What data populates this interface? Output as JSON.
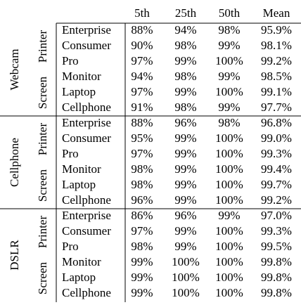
{
  "table": {
    "header": [
      "5th",
      "25th",
      "50th",
      "Mean"
    ],
    "groups": [
      {
        "label": "Webcam",
        "subgroups": [
          {
            "label": "Printer",
            "rows": [
              {
                "name": "Enterprise",
                "values": [
                  "88%",
                  "94%",
                  "98%",
                  "95.9%"
                ]
              },
              {
                "name": "Consumer",
                "values": [
                  "90%",
                  "98%",
                  "99%",
                  "98.1%"
                ]
              },
              {
                "name": "Pro",
                "values": [
                  "97%",
                  "99%",
                  "100%",
                  "99.2%"
                ]
              }
            ]
          },
          {
            "label": "Screen",
            "rows": [
              {
                "name": "Monitor",
                "values": [
                  "94%",
                  "98%",
                  "99%",
                  "98.5%"
                ]
              },
              {
                "name": "Laptop",
                "values": [
                  "97%",
                  "99%",
                  "100%",
                  "99.1%"
                ]
              },
              {
                "name": "Cellphone",
                "values": [
                  "91%",
                  "98%",
                  "99%",
                  "97.7%"
                ]
              }
            ]
          }
        ]
      },
      {
        "label": "Cellphone",
        "subgroups": [
          {
            "label": "Printer",
            "rows": [
              {
                "name": "Enterprise",
                "values": [
                  "88%",
                  "96%",
                  "98%",
                  "96.8%"
                ]
              },
              {
                "name": "Consumer",
                "values": [
                  "95%",
                  "99%",
                  "100%",
                  "99.0%"
                ]
              },
              {
                "name": "Pro",
                "values": [
                  "97%",
                  "99%",
                  "100%",
                  "99.3%"
                ]
              }
            ]
          },
          {
            "label": "Screen",
            "rows": [
              {
                "name": "Monitor",
                "values": [
                  "98%",
                  "99%",
                  "100%",
                  "99.4%"
                ]
              },
              {
                "name": "Laptop",
                "values": [
                  "98%",
                  "99%",
                  "100%",
                  "99.7%"
                ]
              },
              {
                "name": "Cellphone",
                "values": [
                  "96%",
                  "99%",
                  "100%",
                  "99.2%"
                ]
              }
            ]
          }
        ]
      },
      {
        "label": "DSLR",
        "subgroups": [
          {
            "label": "Printer",
            "rows": [
              {
                "name": "Enterprise",
                "values": [
                  "86%",
                  "96%",
                  "99%",
                  "97.0%"
                ]
              },
              {
                "name": "Consumer",
                "values": [
                  "97%",
                  "99%",
                  "100%",
                  "99.3%"
                ]
              },
              {
                "name": "Pro",
                "values": [
                  "98%",
                  "99%",
                  "100%",
                  "99.5%"
                ]
              }
            ]
          },
          {
            "label": "Screen",
            "rows": [
              {
                "name": "Monitor",
                "values": [
                  "99%",
                  "100%",
                  "100%",
                  "99.8%"
                ]
              },
              {
                "name": "Laptop",
                "values": [
                  "99%",
                  "100%",
                  "100%",
                  "99.8%"
                ]
              },
              {
                "name": "Cellphone",
                "values": [
                  "99%",
                  "100%",
                  "100%",
                  "99.8%"
                ]
              }
            ]
          }
        ]
      }
    ]
  }
}
